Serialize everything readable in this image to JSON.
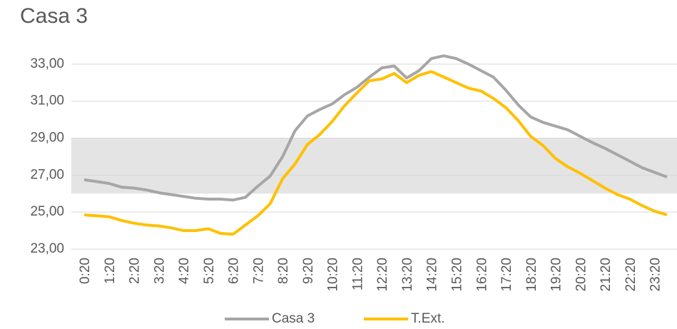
{
  "chart_data": {
    "type": "line",
    "title": "Casa 3",
    "categories": [
      "0:20",
      null,
      "1:20",
      null,
      "2:20",
      null,
      "3:20",
      null,
      "4:20",
      null,
      "5:20",
      null,
      "6:20",
      null,
      "7:20",
      null,
      "8:20",
      null,
      "9:20",
      null,
      "10:20",
      null,
      "11:20",
      null,
      "12:20",
      null,
      "13:20",
      null,
      "14:20",
      null,
      "15:20",
      null,
      "16:20",
      null,
      "17:20",
      null,
      "18:20",
      null,
      "19:20",
      null,
      "20:20",
      null,
      "21:20",
      null,
      "22:20",
      null,
      "23:20",
      null
    ],
    "series": [
      {
        "name": "Casa 3",
        "color": "#a6a6a6",
        "values": [
          26.75,
          26.65,
          26.55,
          26.35,
          26.3,
          26.2,
          26.05,
          25.95,
          25.85,
          25.75,
          25.7,
          25.7,
          25.65,
          25.8,
          26.4,
          26.95,
          28.0,
          29.4,
          30.2,
          30.55,
          30.85,
          31.35,
          31.75,
          32.3,
          32.8,
          32.9,
          32.25,
          32.65,
          33.3,
          33.45,
          33.3,
          33.0,
          32.65,
          32.3,
          31.6,
          30.8,
          30.15,
          29.85,
          29.65,
          29.45,
          29.1,
          28.75,
          28.45,
          28.1,
          27.75,
          27.4,
          27.15,
          26.9
        ]
      },
      {
        "name": "T.Ext.",
        "color": "#ffc000",
        "values": [
          24.85,
          24.8,
          24.75,
          24.55,
          24.4,
          24.3,
          24.25,
          24.15,
          24.0,
          24.0,
          24.1,
          23.85,
          23.8,
          24.3,
          24.8,
          25.45,
          26.8,
          27.6,
          28.65,
          29.2,
          29.9,
          30.75,
          31.45,
          32.1,
          32.2,
          32.5,
          32.0,
          32.4,
          32.6,
          32.3,
          32.0,
          31.7,
          31.55,
          31.15,
          30.65,
          29.95,
          29.1,
          28.6,
          27.9,
          27.45,
          27.1,
          26.7,
          26.3,
          25.95,
          25.7,
          25.35,
          25.05,
          24.85
        ]
      }
    ],
    "band": [
      26,
      29
    ],
    "band_color": "#e4e4e4",
    "ylim": [
      23,
      34
    ],
    "yticks": [
      {
        "value": 23,
        "label": "23,00"
      },
      {
        "value": 25,
        "label": "25,00"
      },
      {
        "value": 27,
        "label": "27,00"
      },
      {
        "value": 29,
        "label": "29,00"
      },
      {
        "value": 31,
        "label": "31,00"
      },
      {
        "value": 33,
        "label": "33,00"
      }
    ],
    "grid": true,
    "legend": "bottom"
  }
}
